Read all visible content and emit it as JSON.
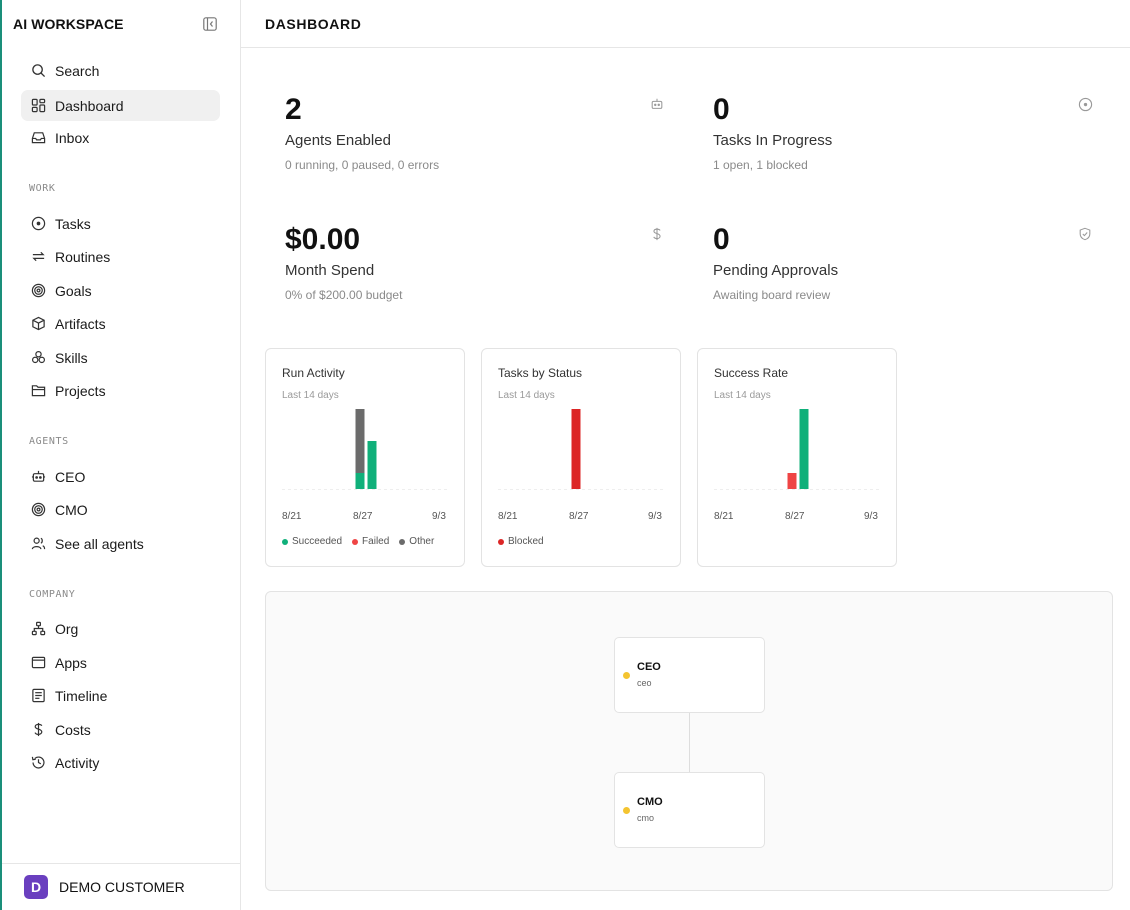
{
  "app": {
    "brand": "AI WORKSPACE"
  },
  "sidebar": {
    "top_items": [
      {
        "label": "Search",
        "icon": "search-icon"
      },
      {
        "label": "Dashboard",
        "icon": "dashboard-icon",
        "active": true
      },
      {
        "label": "Inbox",
        "icon": "inbox-icon"
      }
    ],
    "work_label": "WORK",
    "work_items": [
      {
        "label": "Tasks",
        "icon": "circle-dot-icon"
      },
      {
        "label": "Routines",
        "icon": "repeat-icon"
      },
      {
        "label": "Goals",
        "icon": "target-icon"
      },
      {
        "label": "Artifacts",
        "icon": "box-icon"
      },
      {
        "label": "Skills",
        "icon": "cluster-icon"
      },
      {
        "label": "Projects",
        "icon": "folder-icon"
      }
    ],
    "agents_label": "AGENTS",
    "agent_items": [
      {
        "label": "CEO",
        "icon": "robot-icon"
      },
      {
        "label": "CMO",
        "icon": "target-icon"
      },
      {
        "label": "See all agents",
        "icon": "users-icon"
      }
    ],
    "company_label": "COMPANY",
    "company_items": [
      {
        "label": "Org",
        "icon": "org-icon"
      },
      {
        "label": "Apps",
        "icon": "window-icon"
      },
      {
        "label": "Timeline",
        "icon": "doc-lines-icon"
      },
      {
        "label": "Costs",
        "icon": "dollar-icon"
      },
      {
        "label": "Activity",
        "icon": "history-icon"
      }
    ],
    "footer": {
      "avatar_letter": "D",
      "name": "DEMO CUSTOMER",
      "avatar_color": "#6a3fbf"
    }
  },
  "header": {
    "title": "DASHBOARD"
  },
  "stats": {
    "agents": {
      "value": "2",
      "title": "Agents Enabled",
      "sub": "0 running, 0 paused, 0 errors",
      "icon": "robot-icon"
    },
    "tasks": {
      "value": "0",
      "title": "Tasks In Progress",
      "sub": "1 open, 1 blocked",
      "icon": "circle-dot-icon"
    },
    "spend": {
      "value": "$0.00",
      "title": "Month Spend",
      "sub": "0% of $200.00 budget",
      "icon": "dollar-icon"
    },
    "approvals": {
      "value": "0",
      "title": "Pending Approvals",
      "sub": "Awaiting board review",
      "icon": "shield-check-icon"
    }
  },
  "colors": {
    "succeeded": "#10b07a",
    "failed": "#ef4444",
    "other": "#6b6b6b",
    "blocked": "#dc2626",
    "status_dot": "#f4c430",
    "accent_edge": "#1a8f7a"
  },
  "chart_data": [
    {
      "type": "bar",
      "title": "Run Activity",
      "subtitle": "Last 14 days",
      "x_ticks": [
        "8/21",
        "8/27",
        "9/3"
      ],
      "categories": [
        "8/21",
        "8/22",
        "8/23",
        "8/24",
        "8/25",
        "8/26",
        "8/27",
        "8/28",
        "8/29",
        "8/30",
        "8/31",
        "9/1",
        "9/2",
        "9/3"
      ],
      "stacked": true,
      "ylim": [
        0,
        5
      ],
      "series": [
        {
          "name": "Succeeded",
          "values": [
            0,
            0,
            0,
            0,
            0,
            0,
            1,
            3,
            0,
            0,
            0,
            0,
            0,
            0
          ]
        },
        {
          "name": "Failed",
          "values": [
            0,
            0,
            0,
            0,
            0,
            0,
            0,
            0,
            0,
            0,
            0,
            0,
            0,
            0
          ]
        },
        {
          "name": "Other",
          "values": [
            0,
            0,
            0,
            0,
            0,
            0,
            4,
            0,
            0,
            0,
            0,
            0,
            0,
            0
          ]
        }
      ]
    },
    {
      "type": "bar",
      "title": "Tasks by Status",
      "subtitle": "Last 14 days",
      "x_ticks": [
        "8/21",
        "8/27",
        "9/3"
      ],
      "categories": [
        "8/21",
        "8/22",
        "8/23",
        "8/24",
        "8/25",
        "8/26",
        "8/27",
        "8/28",
        "8/29",
        "8/30",
        "8/31",
        "9/1",
        "9/2",
        "9/3"
      ],
      "stacked": true,
      "ylim": [
        0,
        1
      ],
      "series": [
        {
          "name": "Blocked",
          "values": [
            0,
            0,
            0,
            0,
            0,
            0,
            1,
            0,
            0,
            0,
            0,
            0,
            0,
            0
          ]
        }
      ]
    },
    {
      "type": "bar",
      "title": "Success Rate",
      "subtitle": "Last 14 days",
      "x_ticks": [
        "8/21",
        "8/27",
        "9/3"
      ],
      "categories": [
        "8/21",
        "8/22",
        "8/23",
        "8/24",
        "8/25",
        "8/26",
        "8/27",
        "8/28",
        "8/29",
        "8/30",
        "8/31",
        "9/1",
        "9/2",
        "9/3"
      ],
      "ylim": [
        0,
        100
      ],
      "values": [
        0,
        0,
        0,
        0,
        0,
        0,
        20,
        100,
        0,
        0,
        0,
        0,
        0,
        0
      ]
    }
  ],
  "org": {
    "nodes": [
      {
        "name": "CEO",
        "role": "ceo"
      },
      {
        "name": "CMO",
        "role": "cmo"
      }
    ]
  }
}
